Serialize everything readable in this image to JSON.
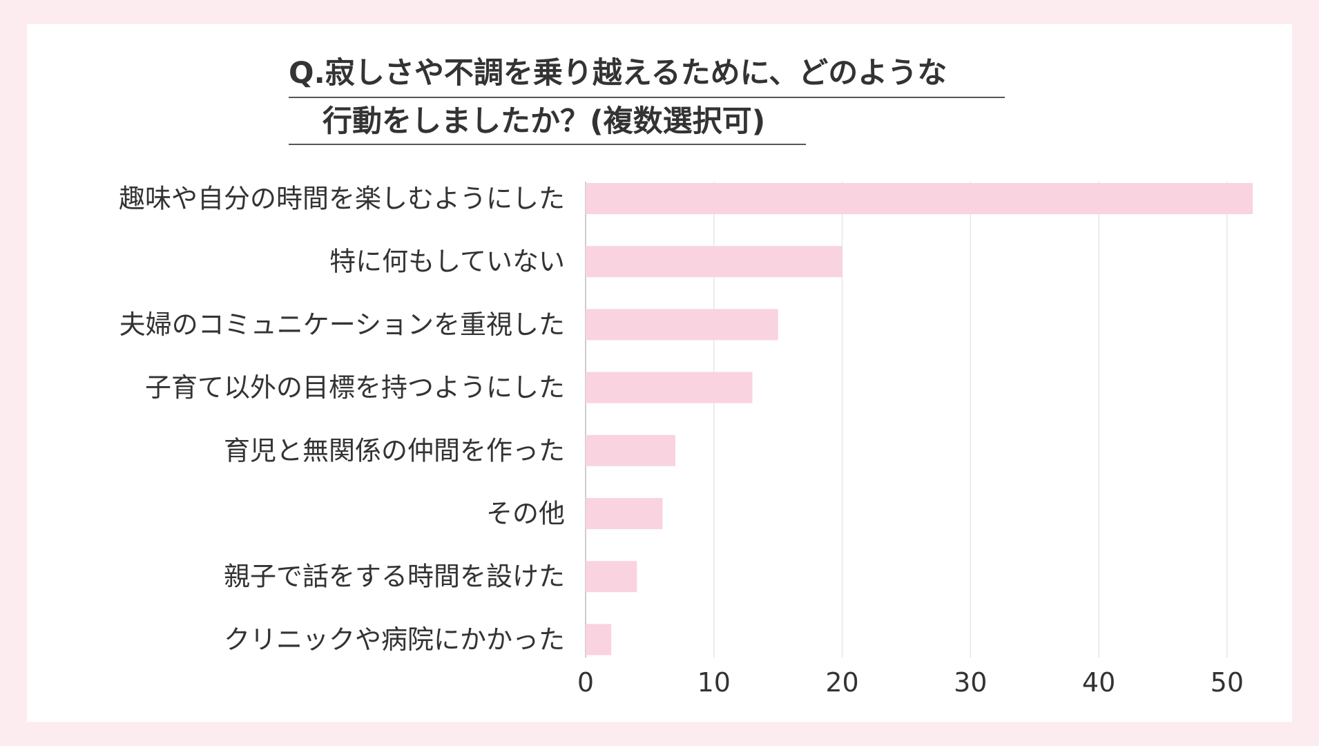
{
  "title_lines": [
    "Q.寂しさや不調を乗り越えるために、どのような",
    "行動をしましたか？(複数選択可)"
  ],
  "colors": {
    "bar": "#f9d3df",
    "background": "#fdecef",
    "grid": "#e6e6e6",
    "axis": "#cccccc",
    "text": "#333333"
  },
  "chart_data": {
    "type": "bar",
    "orientation": "horizontal",
    "title": "Q.寂しさや不調を乗り越えるために、どのような行動をしましたか？(複数選択可)",
    "categories": [
      "趣味や自分の時間を楽しむようにした",
      "特に何もしていない",
      "夫婦のコミュニケーションを重視した",
      "子育て以外の目標を持つようにした",
      "育児と無関係の仲間を作った",
      "その他",
      "親子で話をする時間を設けた",
      "クリニックや病院にかかった"
    ],
    "values": [
      52,
      20,
      15,
      13,
      7,
      6,
      4,
      2
    ],
    "xlim": [
      0,
      52
    ],
    "xticks": [
      0,
      10,
      20,
      30,
      40,
      50
    ],
    "xticks_labels": [
      "0",
      "10",
      "20",
      "30",
      "40",
      "50"
    ],
    "grid": "vertical",
    "legend": "none"
  }
}
